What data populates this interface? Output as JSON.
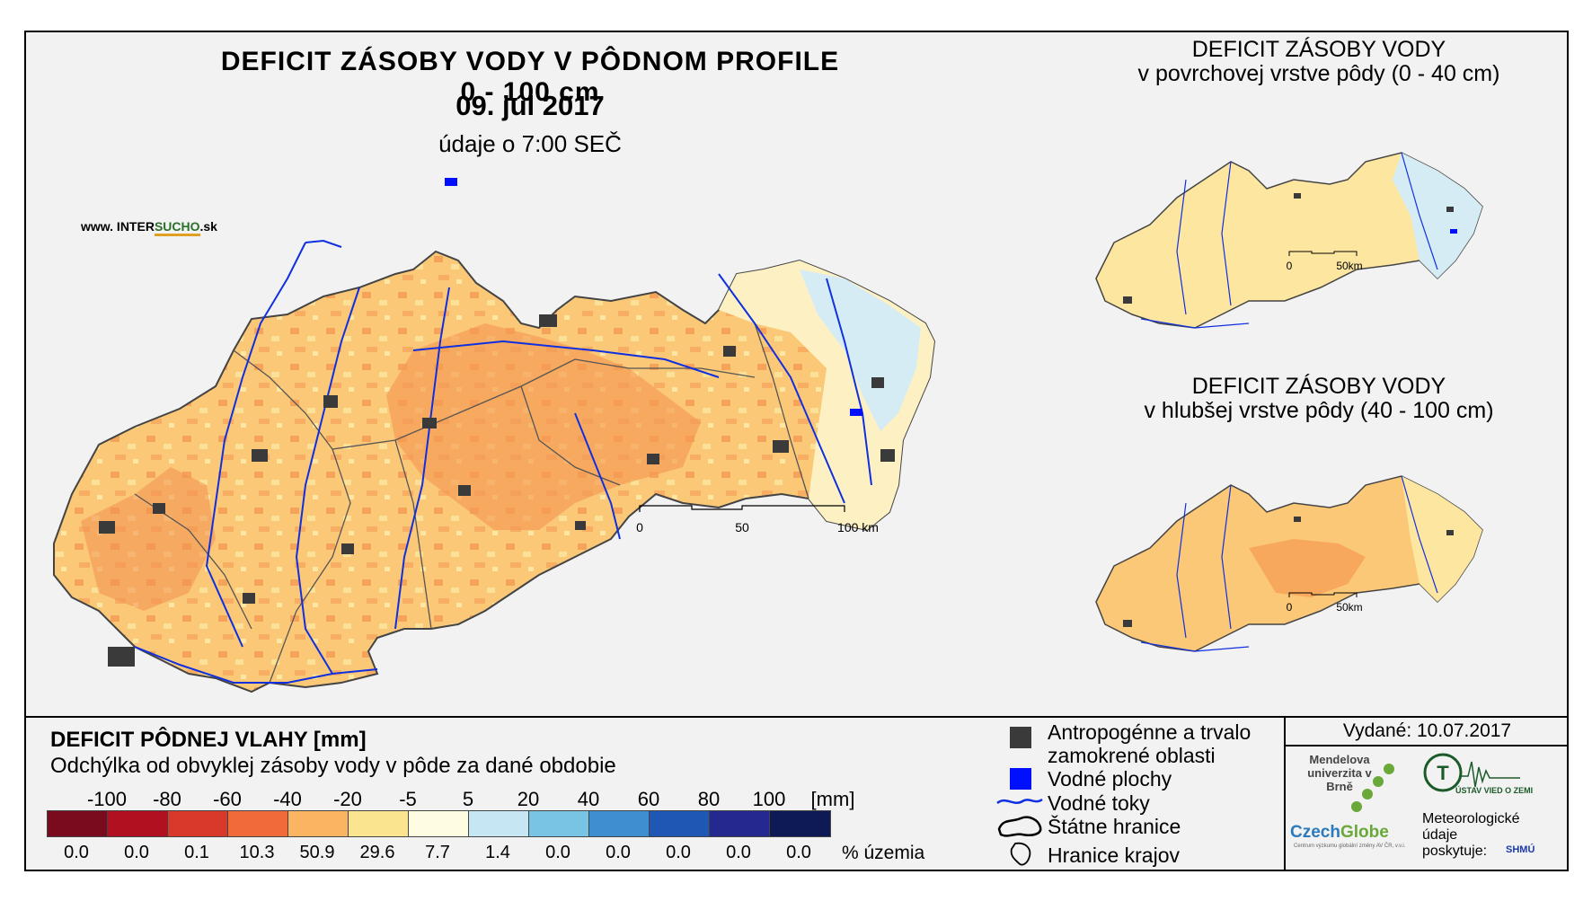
{
  "main_title": "DEFICIT ZÁSOBY VODY V PÔDNOM PROFILE 0 - 100 cm",
  "date": "09. júl 2017",
  "time_note": "údaje o 7:00 SEČ",
  "website": {
    "prefix": "www. INTER",
    "highlight": "SUCHO",
    "suffix": ".sk"
  },
  "main_scalebar": {
    "ticks": [
      "0",
      "50",
      "100 km"
    ]
  },
  "mini_maps": [
    {
      "title_line1": "DEFICIT ZÁSOBY VODY",
      "title_line2": "v povrchovej vrstve pôdy (0 - 40 cm)",
      "scale_ticks": [
        "0",
        "50km"
      ]
    },
    {
      "title_line1": "DEFICIT ZÁSOBY VODY",
      "title_line2": "v hlubšej vrstve pôdy (40 - 100 cm)",
      "scale_ticks": [
        "0",
        "50km"
      ]
    }
  ],
  "legend": {
    "title": "DEFICIT PÔDNEJ VLAHY [mm]",
    "subtitle": "Odchýlka od obvyklej zásoby vody v pôde za dané obdobie",
    "scale_labels": [
      "-100",
      "-80",
      "-60",
      "-40",
      "-20",
      "-5",
      "5",
      "20",
      "40",
      "60",
      "80",
      "100"
    ],
    "unit": "[mm]",
    "classes": [
      {
        "color": "#7a0a1e",
        "pct": "0.0"
      },
      {
        "color": "#b01020",
        "pct": "0.0"
      },
      {
        "color": "#d8392b",
        "pct": "0.1"
      },
      {
        "color": "#f06a3a",
        "pct": "10.3"
      },
      {
        "color": "#fbb562",
        "pct": "50.9"
      },
      {
        "color": "#fbe48f",
        "pct": "29.6"
      },
      {
        "color": "#fefde2",
        "pct": "7.7"
      },
      {
        "color": "#c6e6f4",
        "pct": "1.4"
      },
      {
        "color": "#77c4e4",
        "pct": "0.0"
      },
      {
        "color": "#3f8fd0",
        "pct": "0.0"
      },
      {
        "color": "#1f57b4",
        "pct": "0.0"
      },
      {
        "color": "#25298f",
        "pct": "0.0"
      },
      {
        "color": "#0e1a55",
        "pct": "0.0"
      }
    ],
    "pct_label": "% územia"
  },
  "map_legend": {
    "anthropogenic_1": "Antropogénne a trvalo",
    "anthropogenic_2": "zamokrené oblasti",
    "water_areas": "Vodné plochy",
    "water_streams": "Vodné toky",
    "state_border": "Štátne hranice",
    "region_border": "Hranice krajov"
  },
  "issued": "Vydané: 10.07.2017",
  "logos": {
    "mendel": "Mendelova univerzita v Brně",
    "czechglobe_a": "Czech",
    "czechglobe_b": "Globe",
    "czechglobe_sub": "Centrum výzkumu globální změny AV ČR, v.v.i.",
    "ustav": "ÚSTAV VIED O ZEMI",
    "meteo": "Meteorologické údaje poskytuje:",
    "shmu": "SHMÚ"
  },
  "colors": {
    "frame_bg": "#f2f2f2",
    "river": "#1030e0",
    "urban": "#3a3a3a",
    "water": "#0010ff"
  }
}
